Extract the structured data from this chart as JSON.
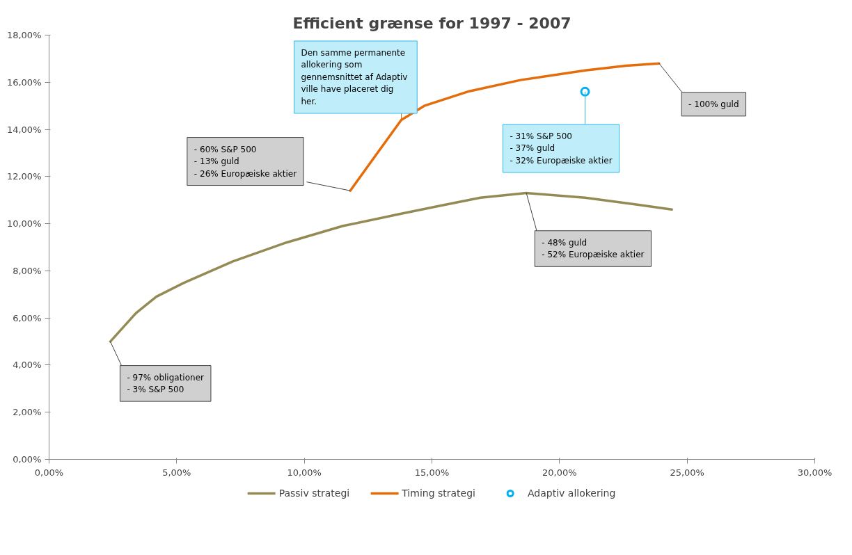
{
  "chart_data": {
    "type": "line",
    "title": "Efficient grænse for 1997 - 2007",
    "xlim": [
      0,
      30
    ],
    "ylim": [
      0,
      18
    ],
    "xticks": [
      {
        "value": 0,
        "label": "0,00%"
      },
      {
        "value": 5,
        "label": "5,00%"
      },
      {
        "value": 10,
        "label": "10,00%"
      },
      {
        "value": 15,
        "label": "15,00%"
      },
      {
        "value": 20,
        "label": "20,00%"
      },
      {
        "value": 25,
        "label": "25,00%"
      },
      {
        "value": 30,
        "label": "30,00%"
      }
    ],
    "yticks": [
      {
        "value": 0,
        "label": "0,00%"
      },
      {
        "value": 2,
        "label": "2,00%"
      },
      {
        "value": 4,
        "label": "4,00%"
      },
      {
        "value": 6,
        "label": "6,00%"
      },
      {
        "value": 8,
        "label": "8,00%"
      },
      {
        "value": 10,
        "label": "10,00%"
      },
      {
        "value": 12,
        "label": "12,00%"
      },
      {
        "value": 14,
        "label": "14,00%"
      },
      {
        "value": 16,
        "label": "16,00%"
      },
      {
        "value": 18,
        "label": "18,00%"
      }
    ],
    "grid": false,
    "legend": "bottom",
    "line_style": "solid",
    "series": [
      {
        "name": "Passiv strategi",
        "color": "#948a54",
        "x": [
          2.4,
          3.4,
          4.2,
          5.3,
          7.2,
          9.3,
          11.5,
          13.7,
          15.5,
          16.9,
          18.7,
          21.0,
          23.1,
          24.4
        ],
        "values": [
          5.0,
          6.2,
          6.9,
          7.5,
          8.4,
          9.2,
          9.9,
          10.4,
          10.8,
          11.1,
          11.3,
          11.1,
          10.8,
          10.6
        ]
      },
      {
        "name": "Timing strategi",
        "color": "#e46c0a",
        "x": [
          11.8,
          12.8,
          13.8,
          14.7,
          16.4,
          18.5,
          21.0,
          22.6,
          23.9
        ],
        "values": [
          11.4,
          12.9,
          14.4,
          15.0,
          15.6,
          16.1,
          16.5,
          16.7,
          16.8
        ]
      },
      {
        "name": "Adaptiv allokering",
        "type": "scatter",
        "marker": "circle",
        "color": "#00b0f0",
        "x": [
          21.0
        ],
        "values": [
          15.6
        ]
      }
    ],
    "annotations": [
      {
        "text": "- 97% obligationer\n- 3% S&P 500",
        "x": 2.4,
        "y": 5.0
      },
      {
        "text": "- 60% S&P 500\n- 13% guld\n- 26% Europæiske aktier",
        "x": 11.8,
        "y": 11.4
      },
      {
        "text": "Den samme permanente\nallokering som\ngennemsnittet  af Adaptiv\nville have placeret dig\nher.",
        "x": 13.8,
        "y": 14.4
      },
      {
        "text": "- 100% guld",
        "x": 23.9,
        "y": 16.8
      },
      {
        "text": "- 31% S&P 500\n- 37% guld\n- 32% Europæiske aktier",
        "x": 21.0,
        "y": 15.6
      },
      {
        "text": "- 48% guld\n- 52% Europæiske aktier",
        "x": 18.7,
        "y": 11.3
      }
    ]
  }
}
